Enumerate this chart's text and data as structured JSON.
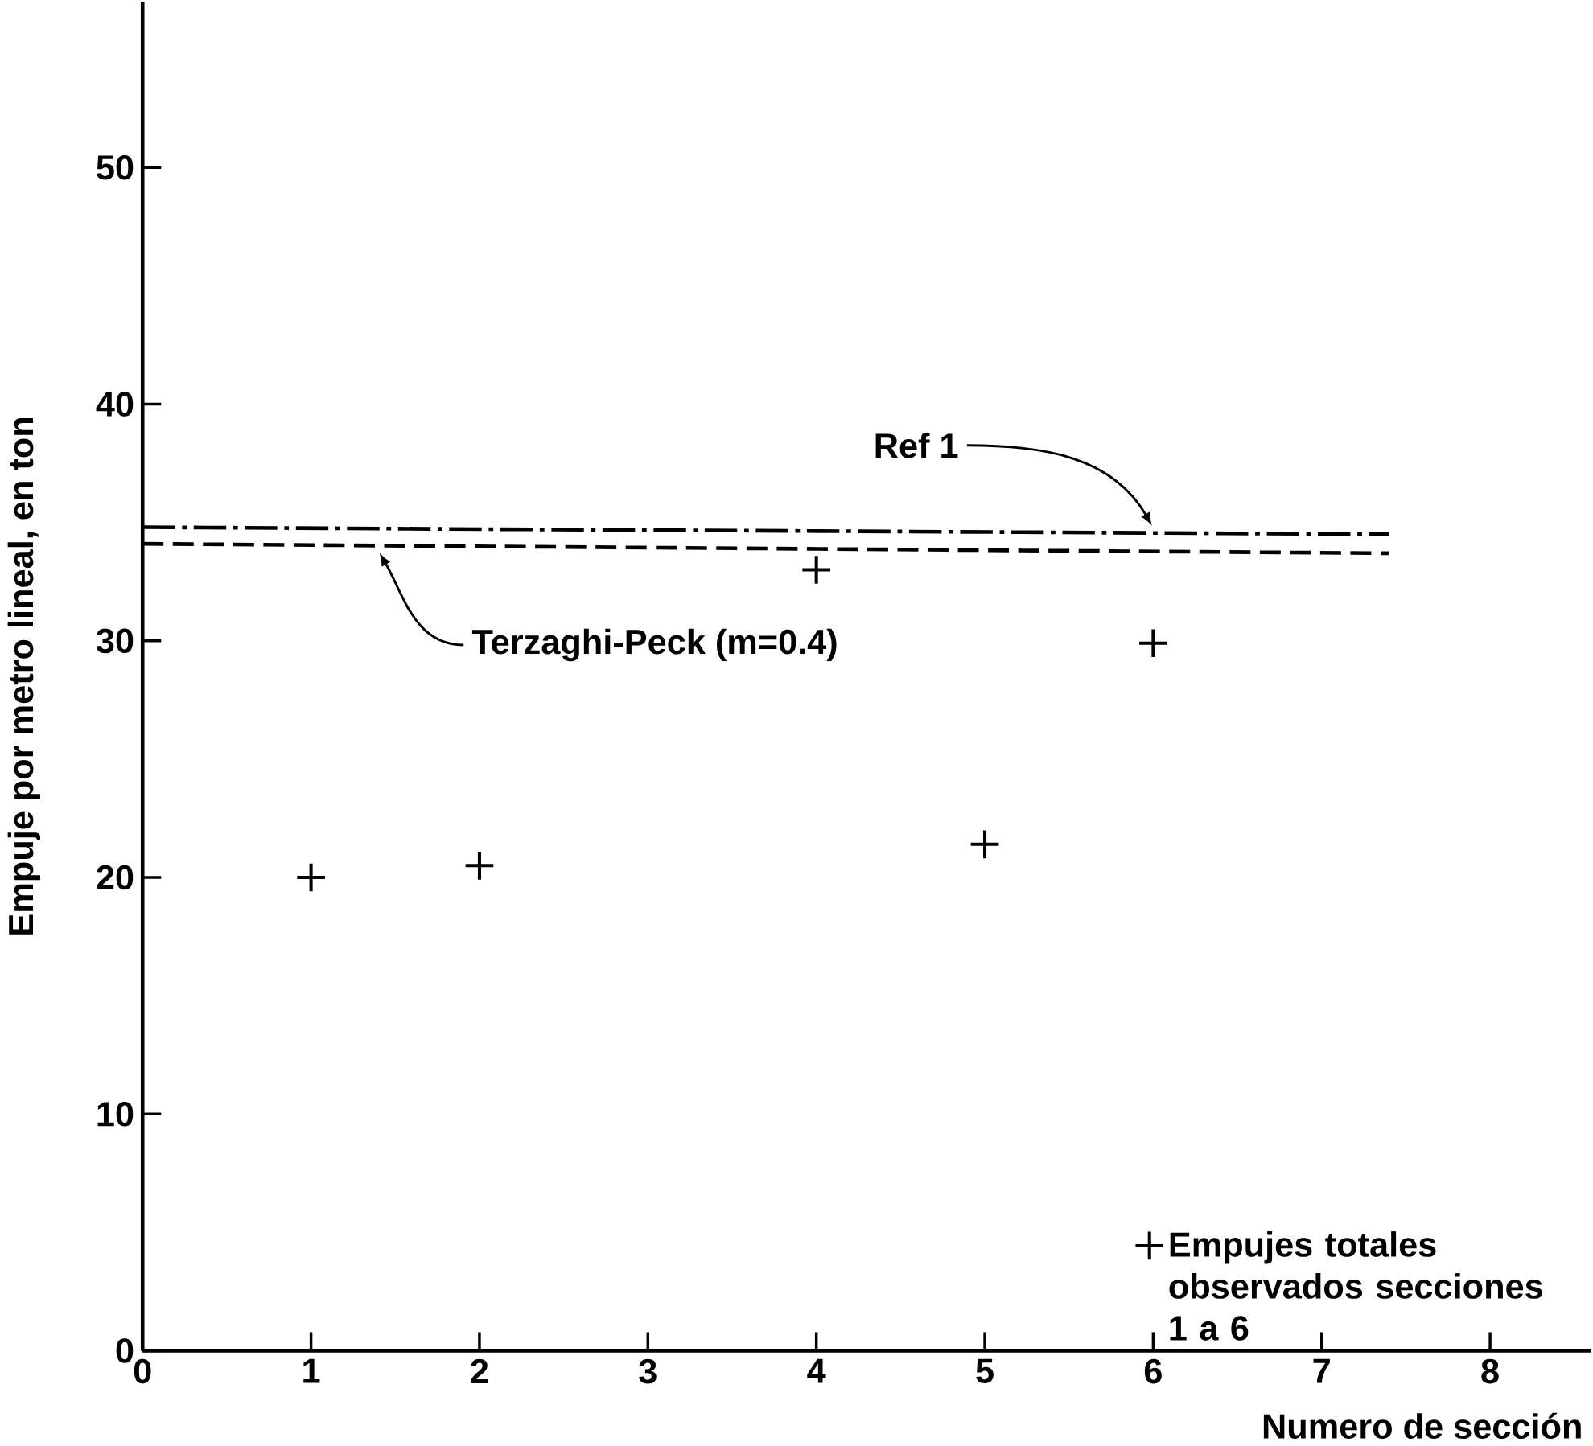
{
  "chart_data": {
    "type": "scatter",
    "xlabel": "Numero de sección",
    "ylabel": "Empuje por metro lineal, en ton",
    "xlim": [
      0,
      8.6
    ],
    "ylim": [
      0,
      57
    ],
    "xticks": [
      0,
      1,
      2,
      3,
      4,
      5,
      6,
      7,
      8
    ],
    "yticks": [
      0,
      10,
      20,
      30,
      40,
      50
    ],
    "grid": false,
    "legend": "bottom right",
    "series": [
      {
        "name": "Empujes totales observados secciones 1 a 6",
        "marker": "cross",
        "color": "#000000",
        "x": [
          1,
          2,
          4,
          5,
          6
        ],
        "values": [
          20.0,
          20.5,
          33.0,
          21.4,
          29.9
        ]
      },
      {
        "name": "Ref 1",
        "type": "line",
        "marker": "none",
        "color": "#000000",
        "line_style": "dashdot",
        "x": [
          0,
          7.4
        ],
        "values": [
          34.8,
          34.5
        ]
      },
      {
        "name": "Terzaghi-Peck (m=0.4)",
        "type": "line",
        "marker": "none",
        "color": "#000000",
        "line_style": "dashed",
        "x": [
          0,
          7.4
        ],
        "values": [
          34.1,
          33.7
        ]
      }
    ]
  }
}
